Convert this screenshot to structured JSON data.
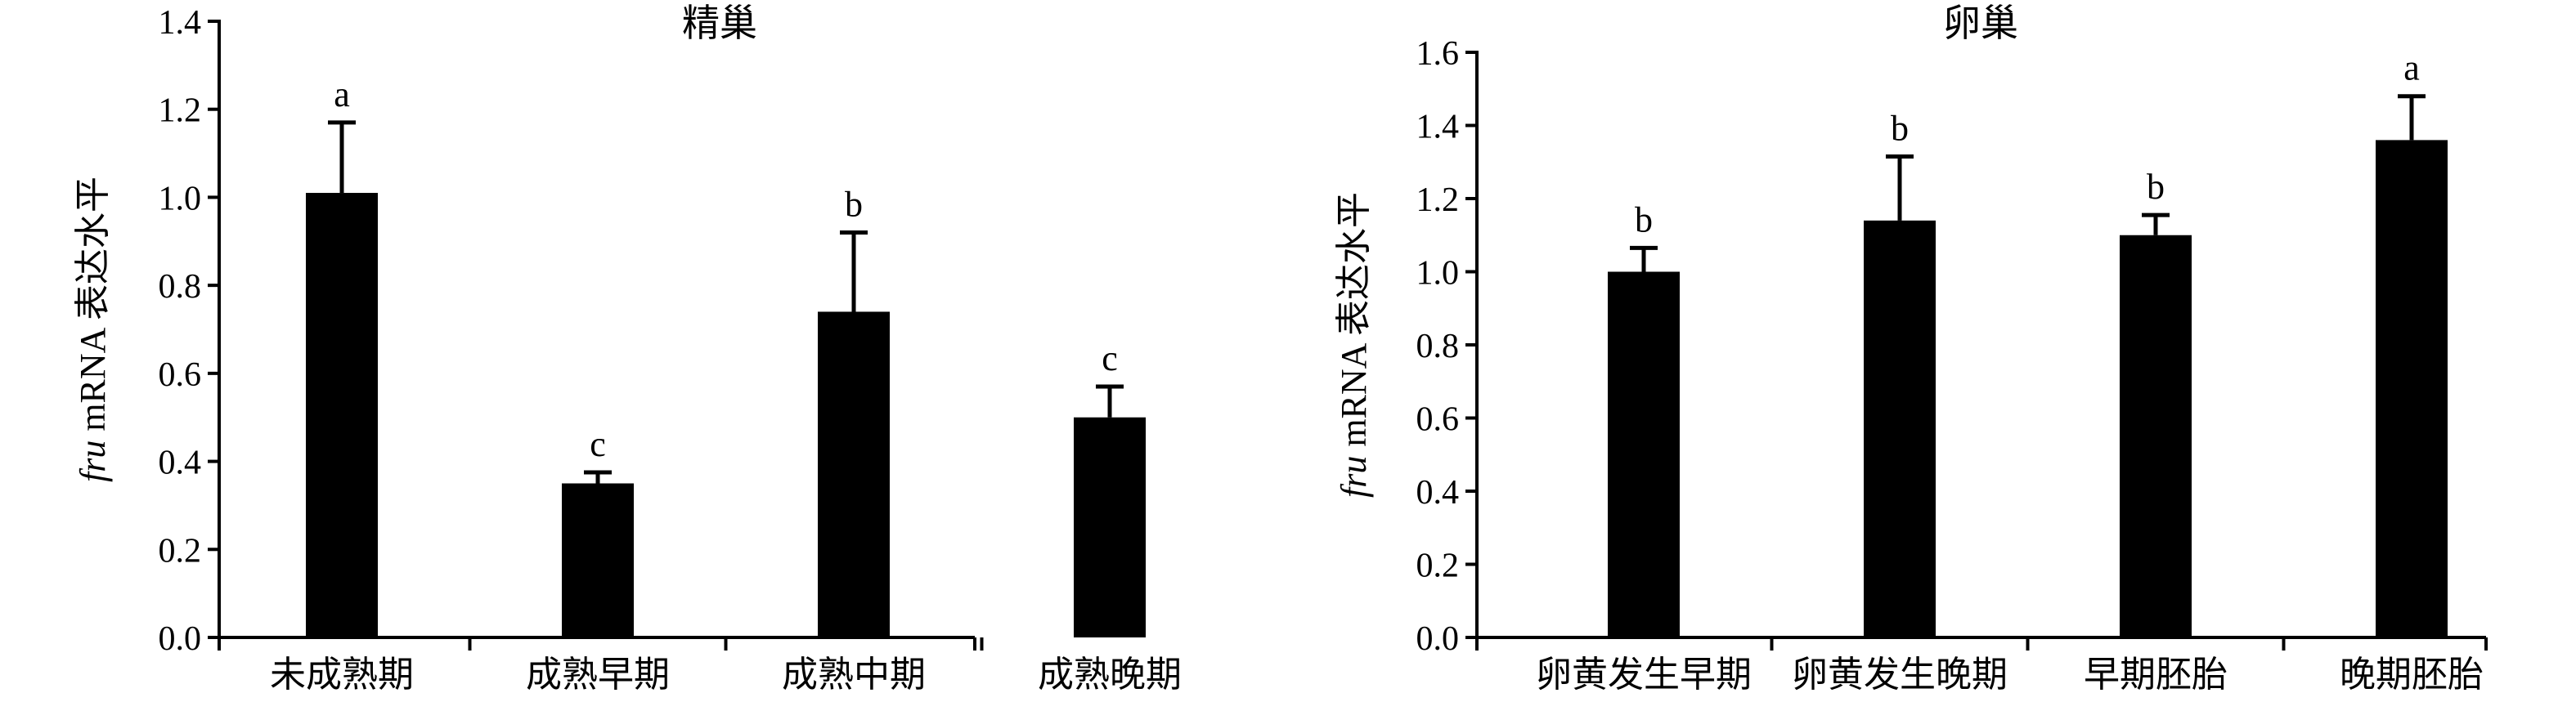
{
  "chart_data": [
    {
      "type": "bar",
      "title": "精巢",
      "ylabel": {
        "italic": "fru",
        "rest": " mRNA 表达水平"
      },
      "ylim": [
        0,
        1.4
      ],
      "yticks": [
        "0.0",
        "0.2",
        "0.4",
        "0.6",
        "0.8",
        "1.0",
        "1.2",
        "1.4"
      ],
      "categories": [
        "未成熟期",
        "成熟早期",
        "成熟中期",
        "成熟晚期"
      ],
      "values": [
        1.01,
        0.35,
        0.74,
        0.5
      ],
      "errors": [
        0.16,
        0.025,
        0.18,
        0.07
      ],
      "significance": [
        "a",
        "c",
        "b",
        "c"
      ],
      "bar_color": "#000000"
    },
    {
      "type": "bar",
      "title": "卵巢",
      "ylabel": {
        "italic": "fru",
        "rest": " mRNA 表达水平"
      },
      "ylim": [
        0,
        1.6
      ],
      "yticks": [
        "0.0",
        "0.2",
        "0.4",
        "0.6",
        "0.8",
        "1.0",
        "1.2",
        "1.4",
        "1.6"
      ],
      "categories": [
        "卵黄发生早期",
        "卵黄发生晚期",
        "早期胚胎",
        "晚期胚胎"
      ],
      "values": [
        1.0,
        1.14,
        1.1,
        1.36
      ],
      "errors": [
        0.065,
        0.175,
        0.055,
        0.12
      ],
      "significance": [
        "b",
        "b",
        "b",
        "a"
      ],
      "bar_color": "#000000"
    }
  ]
}
